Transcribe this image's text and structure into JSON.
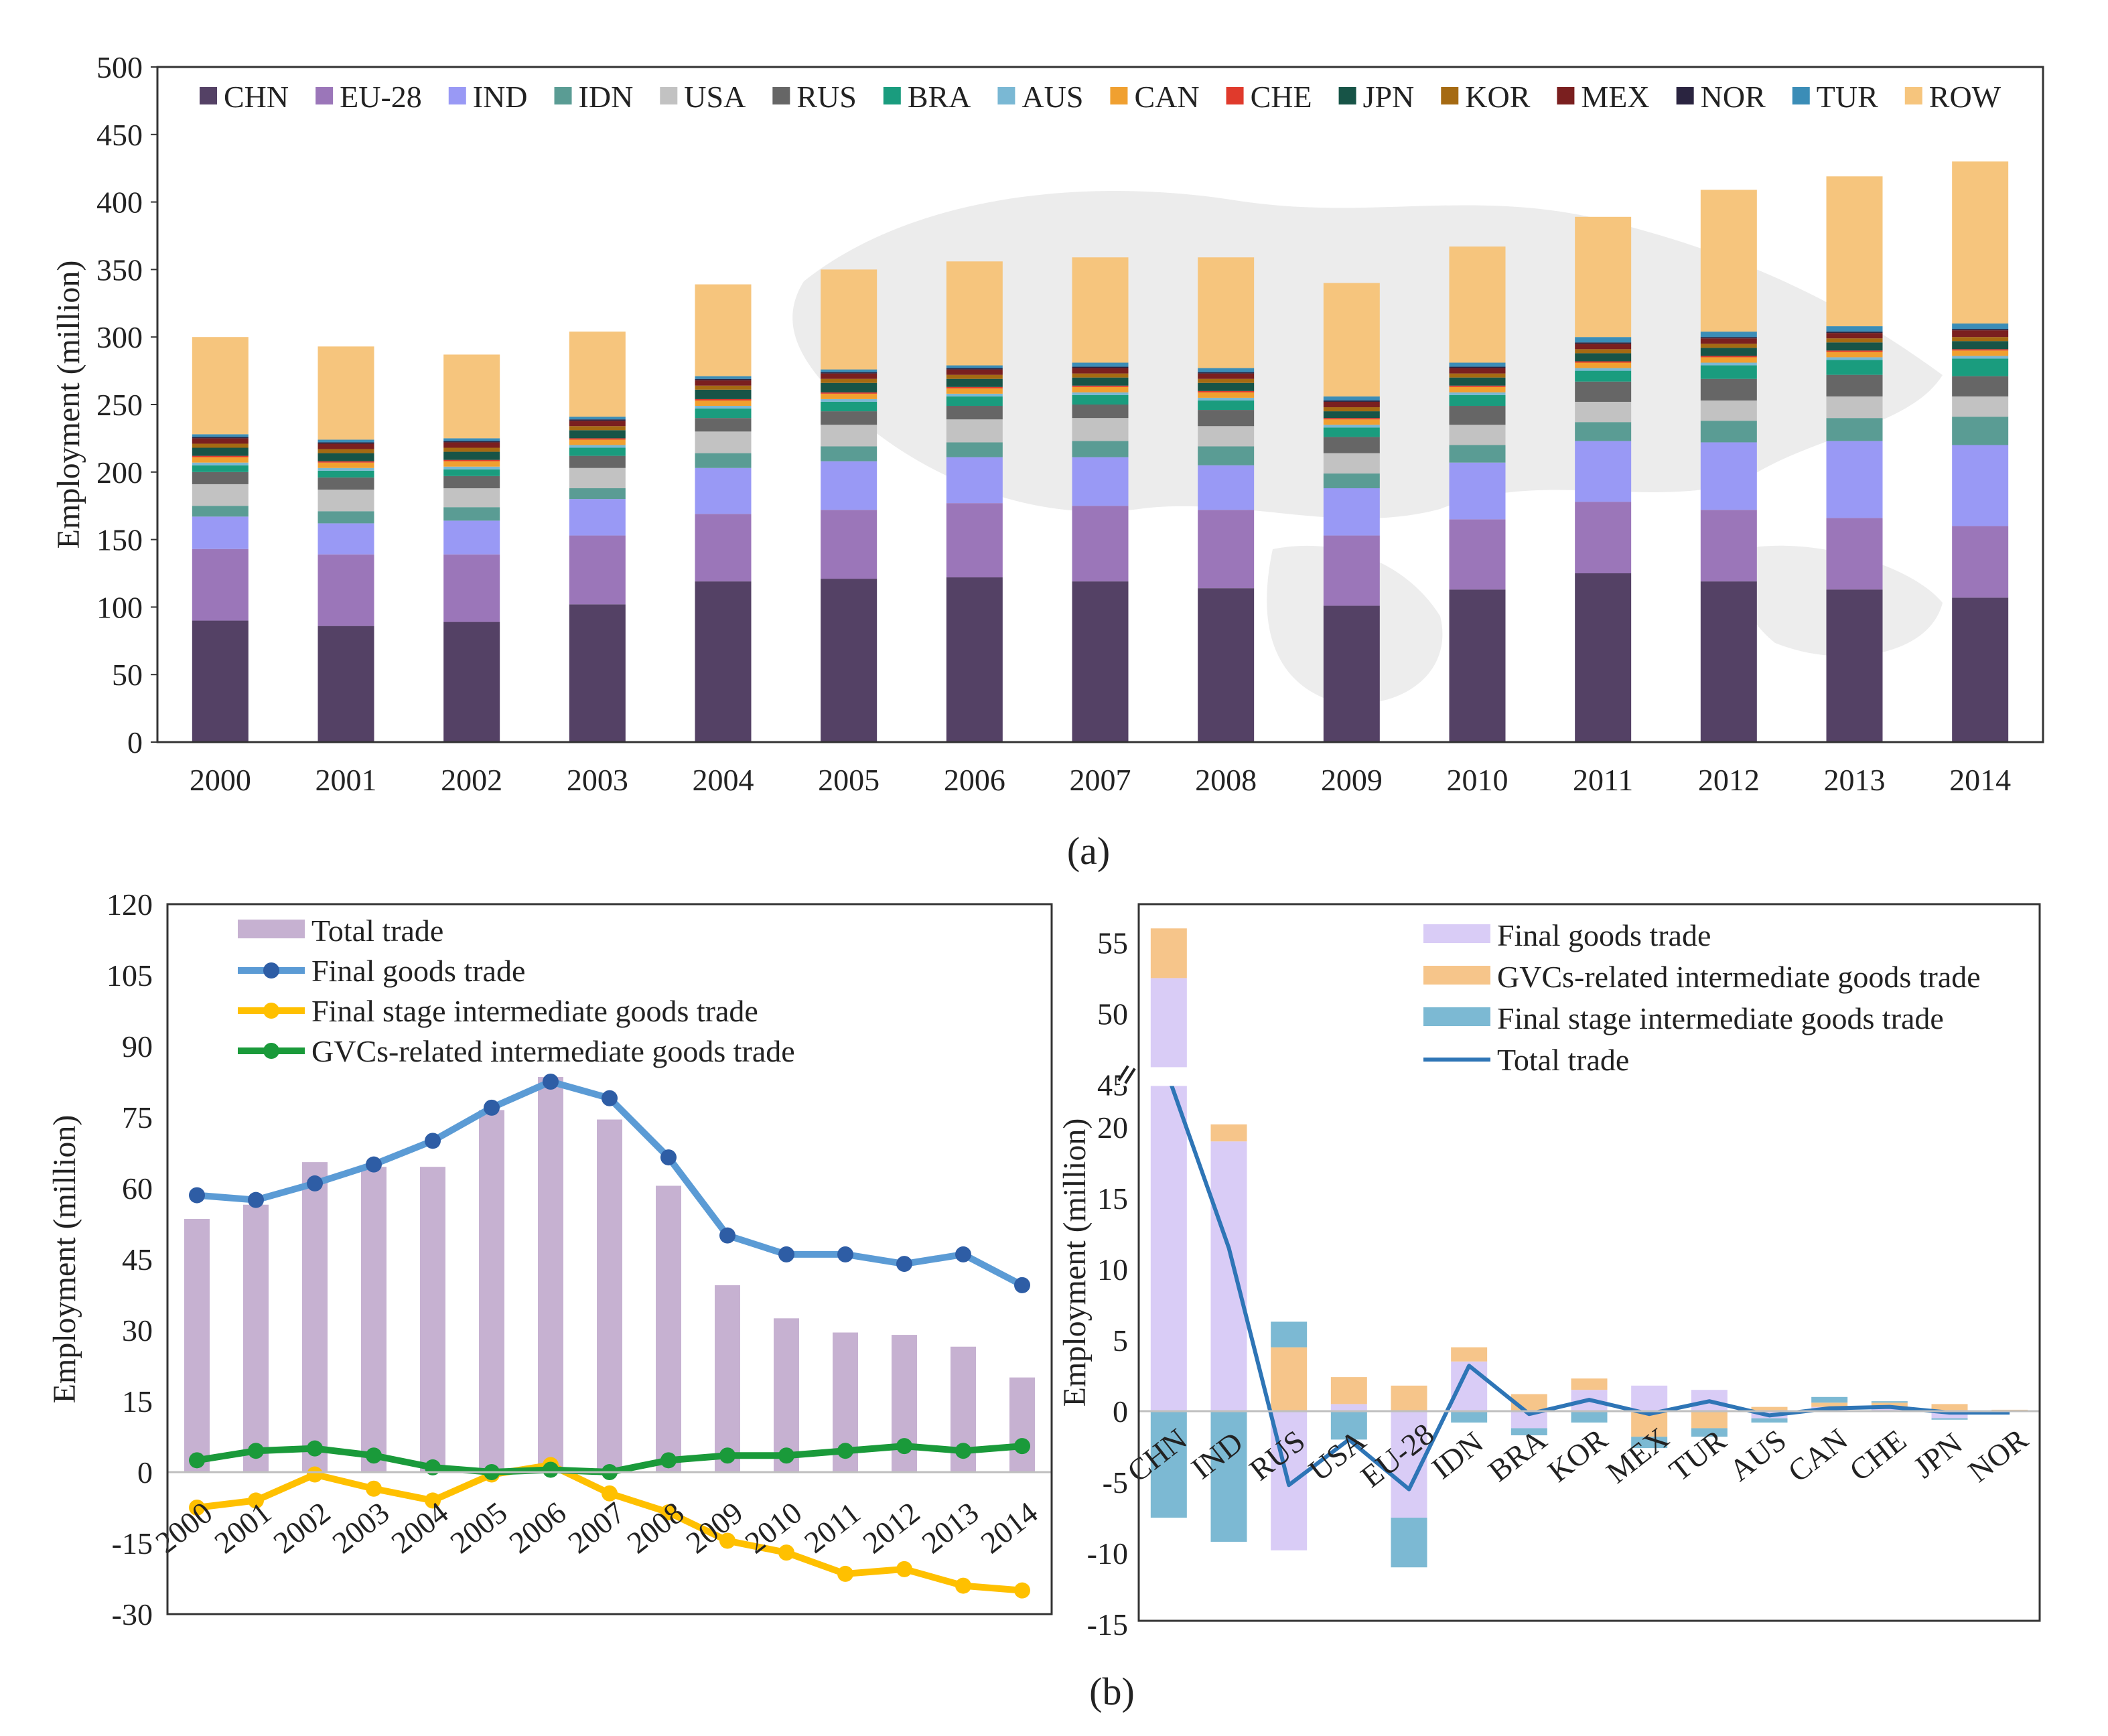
{
  "colors": {
    "CHN": "#544165",
    "EU-28": "#9b76b9",
    "IND": "#9999f5",
    "IDN": "#5a9c94",
    "USA": "#c2c2c2",
    "RUS": "#666666",
    "BRA": "#1a9c7e",
    "AUS": "#7ab8d4",
    "CAN": "#f0a030",
    "CHE": "#e03a2c",
    "JPN": "#175447",
    "KOR": "#a56a12",
    "MEX": "#7a1f1f",
    "NOR": "#2a2440",
    "TUR": "#3b8db7",
    "ROW": "#f6c57d",
    "total_trade_b1": "#c6b1d1",
    "final_goods_line": "#5b9bd5",
    "final_goods_marker": "#2e5da5",
    "final_stage_line": "#ffc000",
    "gvc_line": "#1a9a3a",
    "final_goods_bar": "#d9ccf6",
    "gvc_bar": "#f6c58a",
    "final_stage_bar": "#7cb9d3",
    "total_trade_line": "#2e75b6"
  },
  "panel_a": {
    "caption": "(a)",
    "chart_data": {
      "type": "bar",
      "stacked": true,
      "title": "",
      "xlabel": "",
      "ylabel": "Employment (million)",
      "ylim": [
        0,
        500
      ],
      "yticks": [
        "0",
        "50",
        "100",
        "150",
        "200",
        "250",
        "300",
        "350",
        "400",
        "450",
        "500"
      ],
      "legend_position": "top",
      "categories": [
        "2000",
        "2001",
        "2002",
        "2003",
        "2004",
        "2005",
        "2006",
        "2007",
        "2008",
        "2009",
        "2010",
        "2011",
        "2012",
        "2013",
        "2014"
      ],
      "series": [
        {
          "name": "CHN",
          "values": [
            90,
            86,
            89,
            102,
            119,
            121,
            122,
            119,
            114,
            101,
            113,
            125,
            119,
            113,
            107
          ]
        },
        {
          "name": "EU-28",
          "values": [
            53,
            53,
            50,
            51,
            50,
            51,
            55,
            56,
            58,
            52,
            52,
            53,
            53,
            53,
            53
          ]
        },
        {
          "name": "IND",
          "values": [
            24,
            23,
            25,
            27,
            34,
            36,
            34,
            36,
            33,
            35,
            42,
            45,
            50,
            57,
            60
          ]
        },
        {
          "name": "IDN",
          "values": [
            8,
            9,
            10,
            8,
            11,
            11,
            11,
            12,
            14,
            11,
            13,
            14,
            16,
            17,
            21
          ]
        },
        {
          "name": "USA",
          "values": [
            16,
            16,
            14,
            15,
            16,
            16,
            17,
            17,
            15,
            15,
            15,
            15,
            15,
            16,
            15
          ]
        },
        {
          "name": "RUS",
          "values": [
            9,
            9,
            9,
            9,
            10,
            10,
            10,
            10,
            12,
            12,
            14,
            15,
            16,
            16,
            15
          ]
        },
        {
          "name": "BRA",
          "values": [
            5,
            5,
            5,
            6,
            7,
            7,
            7,
            7,
            7,
            7,
            8,
            8,
            10,
            11,
            13
          ]
        },
        {
          "name": "AUS",
          "values": [
            2,
            2,
            2,
            2,
            2,
            2,
            2,
            2,
            2,
            2,
            2,
            2,
            2,
            2,
            2
          ]
        },
        {
          "name": "CAN",
          "values": [
            4,
            4,
            4,
            4,
            4,
            4,
            4,
            4,
            4,
            4,
            4,
            4,
            4,
            4,
            4
          ]
        },
        {
          "name": "CHE",
          "values": [
            1,
            1,
            1,
            1,
            1,
            1,
            1,
            1,
            1,
            1,
            1,
            1,
            1,
            1,
            1
          ]
        },
        {
          "name": "JPN",
          "values": [
            6,
            6,
            6,
            6,
            7,
            7,
            6,
            6,
            6,
            5,
            6,
            6,
            6,
            6,
            6
          ]
        },
        {
          "name": "KOR",
          "values": [
            3,
            3,
            3,
            3,
            3,
            3,
            3,
            3,
            3,
            3,
            3,
            3,
            3,
            3,
            3
          ]
        },
        {
          "name": "MEX",
          "values": [
            4,
            4,
            4,
            4,
            4,
            4,
            4,
            4,
            4,
            4,
            4,
            4,
            4,
            4,
            5
          ]
        },
        {
          "name": "NOR",
          "values": [
            1,
            1,
            1,
            1,
            1,
            1,
            1,
            1,
            1,
            1,
            1,
            1,
            1,
            1,
            1
          ]
        },
        {
          "name": "TUR",
          "values": [
            2,
            2,
            2,
            2,
            2,
            2,
            2,
            3,
            3,
            3,
            3,
            4,
            4,
            4,
            4
          ]
        },
        {
          "name": "ROW",
          "values": [
            72,
            69,
            62,
            63,
            68,
            74,
            77,
            78,
            82,
            84,
            86,
            89,
            105,
            111,
            120
          ]
        }
      ]
    }
  },
  "panel_b1": {
    "chart_data": {
      "type": "line",
      "title": "",
      "xlabel": "",
      "ylabel": "Employment (million)",
      "ylim": [
        -30,
        120
      ],
      "yticks": [
        "-30",
        "-15",
        "0",
        "15",
        "30",
        "45",
        "60",
        "75",
        "90",
        "105",
        "120"
      ],
      "legend_position": "top-left",
      "categories": [
        "2000",
        "2001",
        "2002",
        "2003",
        "2004",
        "2005",
        "2006",
        "2007",
        "2008",
        "2009",
        "2010",
        "2011",
        "2012",
        "2013",
        "2014"
      ],
      "series": [
        {
          "name": "Total trade",
          "kind": "bar",
          "values": [
            53.5,
            56.5,
            65.5,
            64.5,
            64.5,
            76.5,
            83.5,
            74.5,
            60.5,
            39.5,
            32.5,
            29.5,
            29.0,
            26.5,
            20.0
          ]
        },
        {
          "name": "Final goods trade",
          "kind": "line",
          "values": [
            58.5,
            57.5,
            61.0,
            65.0,
            70.0,
            77.0,
            82.5,
            79.0,
            66.5,
            50.0,
            46.0,
            46.0,
            44.0,
            46.0,
            39.5
          ]
        },
        {
          "name": "Final stage intermediate goods trade",
          "kind": "line",
          "values": [
            -7.5,
            -6.0,
            -0.5,
            -3.5,
            -6.0,
            -0.5,
            1.5,
            -4.5,
            -8.5,
            -14.5,
            -17.0,
            -21.5,
            -20.5,
            -24.0,
            -25.0
          ]
        },
        {
          "name": "GVCs-related intermediate goods trade",
          "kind": "line",
          "values": [
            2.5,
            4.5,
            5.0,
            3.5,
            1.0,
            0.0,
            0.5,
            0.0,
            2.5,
            3.5,
            3.5,
            4.5,
            5.5,
            4.5,
            5.5
          ]
        }
      ]
    }
  },
  "panel_b2": {
    "caption": "(b)",
    "chart_data": {
      "type": "bar",
      "stacked": true,
      "title": "",
      "xlabel": "",
      "ylabel": "Employment (million)",
      "ylim": [
        -15,
        55
      ],
      "axis_break": [
        23,
        45
      ],
      "yticks": [
        "-15",
        "-10",
        "-5",
        "0",
        "5",
        "10",
        "15",
        "20",
        "45",
        "50",
        "55"
      ],
      "legend_position": "top-right",
      "categories": [
        "CHN",
        "IND",
        "RUS",
        "USA",
        "EU-28",
        "IDN",
        "BRA",
        "KOR",
        "MEX",
        "TUR",
        "AUS",
        "CAN",
        "CHE",
        "JPN",
        "NOR"
      ],
      "series": [
        {
          "name": "Final goods trade",
          "kind": "bar",
          "values": [
            52.5,
            19.0,
            -9.8,
            0.5,
            -7.5,
            3.5,
            -1.2,
            1.5,
            1.8,
            1.5,
            -0.5,
            0.3,
            0.3,
            -0.5,
            0.0
          ]
        },
        {
          "name": "GVCs-related intermediate goods trade",
          "kind": "bar",
          "values": [
            3.5,
            1.2,
            4.5,
            1.9,
            1.8,
            1.0,
            1.2,
            0.8,
            -1.8,
            -1.2,
            0.3,
            0.3,
            0.3,
            0.5,
            0.1
          ]
        },
        {
          "name": "Final stage intermediate goods trade",
          "kind": "bar",
          "values": [
            -7.5,
            -9.2,
            1.8,
            -2.0,
            -3.5,
            -0.8,
            -0.5,
            -0.8,
            -0.8,
            -0.6,
            -0.3,
            0.4,
            0.1,
            -0.1,
            0.0
          ]
        },
        {
          "name": "Total trade",
          "kind": "line",
          "values": [
            45.5,
            11.5,
            -5.2,
            -2.0,
            -5.5,
            3.2,
            -0.2,
            0.8,
            -0.2,
            0.7,
            -0.3,
            0.2,
            0.3,
            -0.1,
            -0.1
          ]
        }
      ]
    }
  }
}
